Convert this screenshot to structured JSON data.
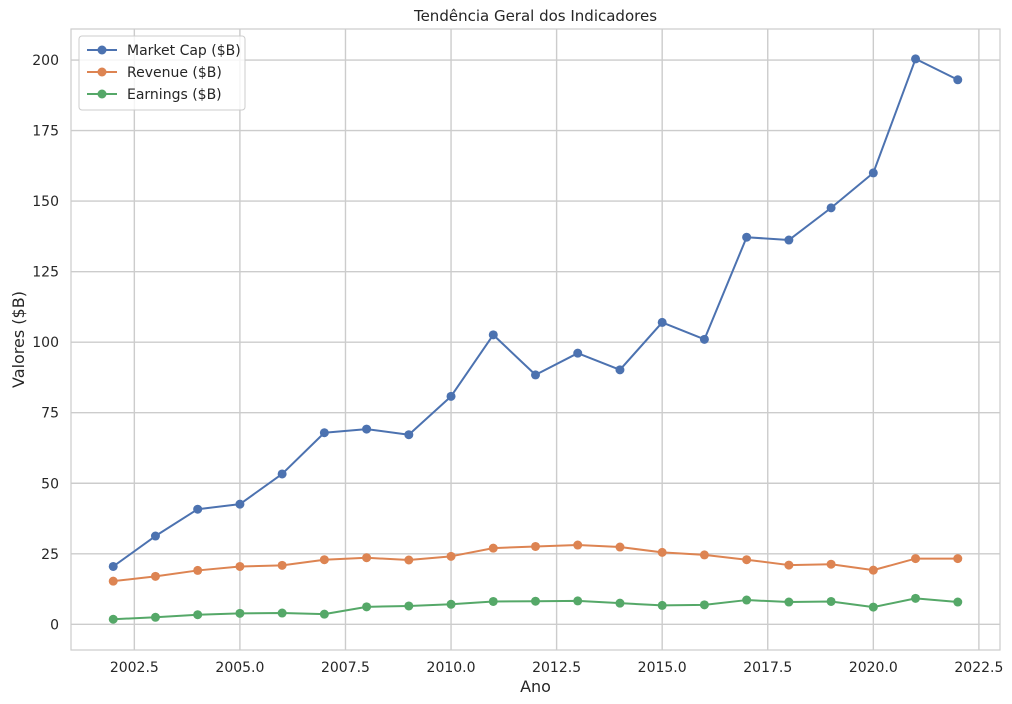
{
  "chart_data": {
    "type": "line",
    "title": "Tendência Geral dos Indicadores",
    "xlabel": "Ano",
    "ylabel": "Valores ($B)",
    "x": [
      2002,
      2003,
      2004,
      2005,
      2006,
      2007,
      2008,
      2009,
      2010,
      2011,
      2012,
      2013,
      2014,
      2015,
      2016,
      2017,
      2018,
      2019,
      2020,
      2021,
      2022
    ],
    "xlim": [
      2001.0,
      2023.0
    ],
    "ylim": [
      -9.1,
      211.0
    ],
    "xticks": [
      2002.5,
      2005.0,
      2007.5,
      2010.0,
      2012.5,
      2015.0,
      2017.5,
      2020.0,
      2022.5
    ],
    "xtick_labels": [
      "2002.5",
      "2005.0",
      "2007.5",
      "2010.0",
      "2012.5",
      "2015.0",
      "2017.5",
      "2020.0",
      "2022.5"
    ],
    "yticks": [
      0,
      25,
      50,
      75,
      100,
      125,
      150,
      175,
      200
    ],
    "ytick_labels": [
      "0",
      "25",
      "50",
      "75",
      "100",
      "125",
      "150",
      "175",
      "200"
    ],
    "grid": true,
    "legend_position": "top-left",
    "series": [
      {
        "name": "Market Cap ($B)",
        "color": "#4c72b0",
        "values": [
          20.5,
          31.3,
          40.8,
          42.6,
          53.3,
          67.9,
          69.2,
          67.2,
          80.8,
          102.6,
          88.4,
          96.1,
          90.2,
          107.0,
          101.0,
          137.2,
          136.2,
          147.6,
          160.0,
          200.4,
          193.0
        ]
      },
      {
        "name": "Revenue ($B)",
        "color": "#dd8452",
        "values": [
          15.3,
          17.0,
          19.1,
          20.5,
          20.9,
          22.9,
          23.6,
          22.8,
          24.1,
          27.0,
          27.6,
          28.1,
          27.4,
          25.5,
          24.6,
          22.9,
          21.0,
          21.3,
          19.2,
          23.3,
          23.3
        ]
      },
      {
        "name": "Earnings ($B)",
        "color": "#55a868",
        "values": [
          1.8,
          2.5,
          3.4,
          3.9,
          4.0,
          3.6,
          6.2,
          6.5,
          7.1,
          8.1,
          8.2,
          8.3,
          7.5,
          6.7,
          6.9,
          8.6,
          7.9,
          8.1,
          6.1,
          9.2,
          7.9
        ]
      }
    ]
  }
}
